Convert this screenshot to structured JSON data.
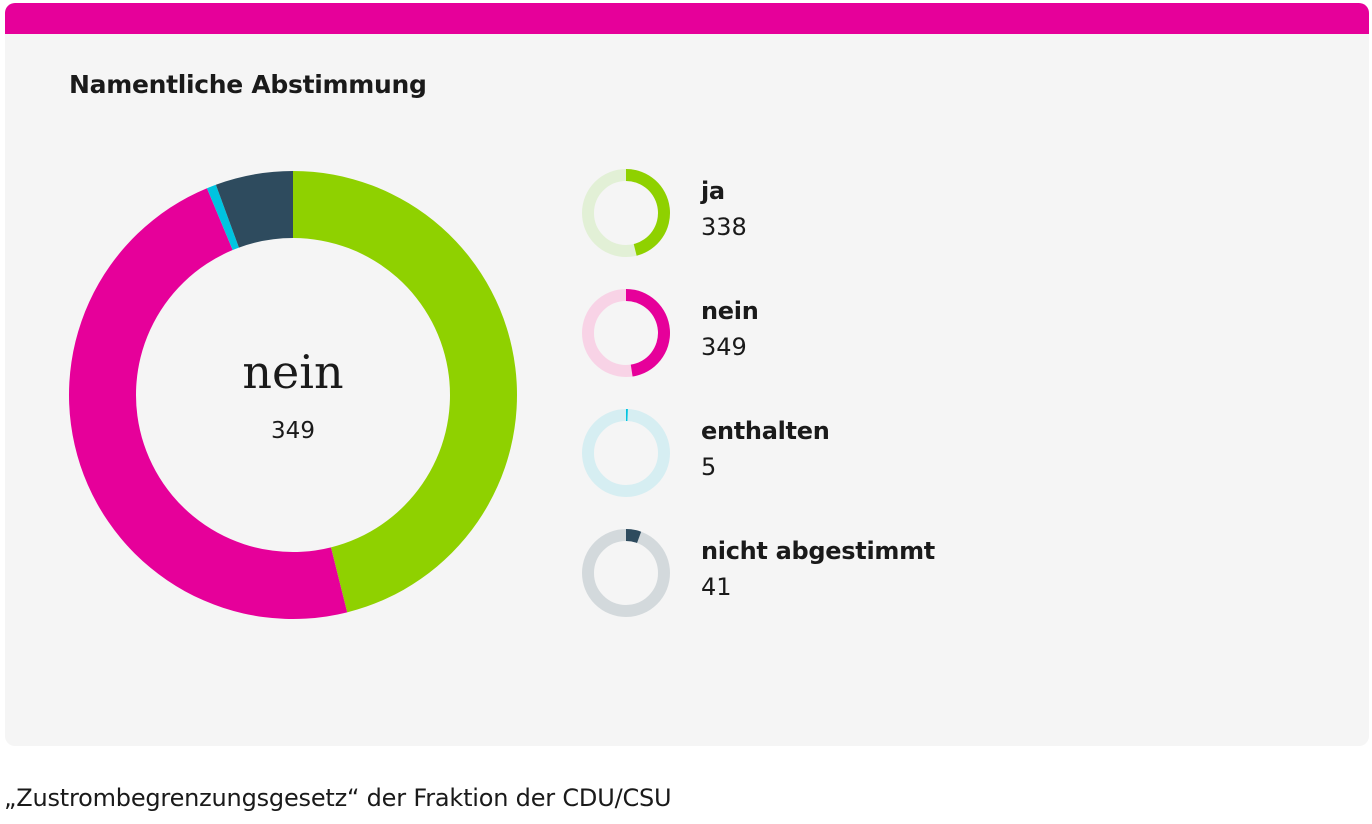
{
  "card": {
    "title": "Namentliche Abstimmung",
    "accent_color": "#e6009a"
  },
  "center": {
    "label": "nein",
    "value": "349"
  },
  "caption": "„Zustrombegrenzungsgesetz“ der Fraktion der CDU/CSU",
  "chart_data": {
    "type": "pie",
    "donut": true,
    "title": "Namentliche Abstimmung",
    "categories": [
      "ja",
      "nein",
      "enthalten",
      "nicht abgestimmt"
    ],
    "values": [
      338,
      349,
      5,
      41
    ],
    "colors": [
      "#8fd100",
      "#e6009a",
      "#00c4e0",
      "#2e4b5e"
    ],
    "track_colors": [
      "#e2f0d6",
      "#f8d3e6",
      "#d6eef2",
      "#d3d9dc"
    ],
    "start_angle": "top",
    "direction": "clockwise"
  },
  "legend": [
    {
      "label": "ja",
      "value": "338"
    },
    {
      "label": "nein",
      "value": "349"
    },
    {
      "label": "enthalten",
      "value": "5"
    },
    {
      "label": "nicht abgestimmt",
      "value": "41"
    }
  ]
}
